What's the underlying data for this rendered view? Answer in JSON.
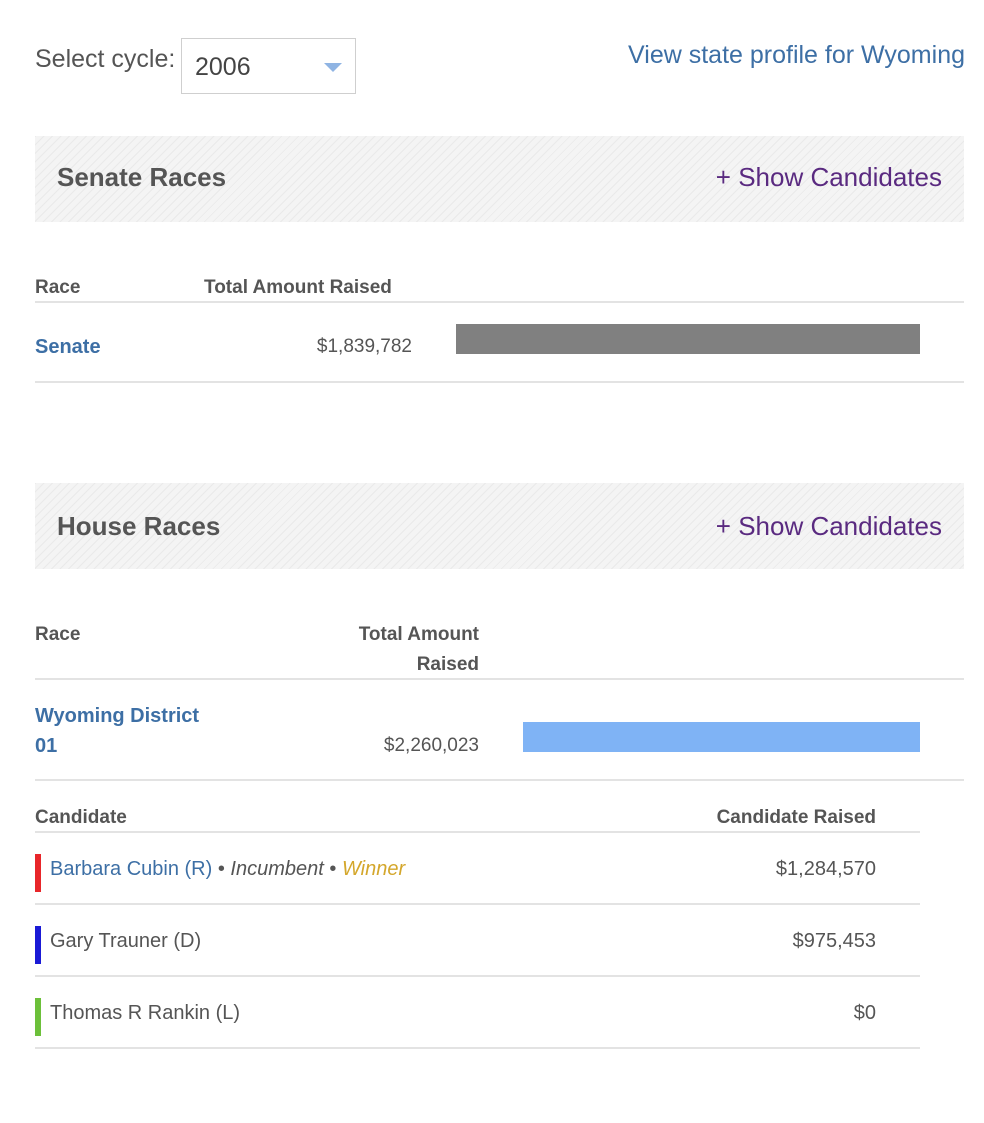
{
  "cycle": {
    "label": "Select cycle:",
    "selected": "2006"
  },
  "state_profile_link": "View state profile for Wyoming",
  "senate": {
    "title": "Senate Races",
    "show_candidates": "+ Show Candidates",
    "col_race": "Race",
    "col_total": "Total Amount Raised",
    "rows": [
      {
        "race": "Senate",
        "total": "$1,839,782",
        "bar_fraction": 1.0,
        "bar_color": "#808080"
      }
    ]
  },
  "house": {
    "title": "House Races",
    "show_candidates": "+ Show Candidates",
    "col_race": "Race",
    "col_total_line1": "Total Amount",
    "col_total_line2": "Raised",
    "rows": [
      {
        "race_line1": "Wyoming District",
        "race_line2": "01",
        "total": "$2,260,023",
        "bar_fraction": 1.0,
        "bar_color": "#7fb3f5"
      }
    ],
    "candidates": {
      "col_candidate": "Candidate",
      "col_raised": "Candidate Raised",
      "rows": [
        {
          "name": "Barbara Cubin (R)",
          "sep1": " • ",
          "incumbent": "Incumbent",
          "sep2": " • ",
          "winner": "Winner",
          "raised": "$1,284,570",
          "party_color": "#e8262a"
        },
        {
          "name": "Gary Trauner (D)",
          "raised": "$975,453",
          "party_color": "#1a1ad6"
        },
        {
          "name": "Thomas R Rankin (L)",
          "raised": "$0",
          "party_color": "#6cc03a"
        }
      ]
    }
  }
}
